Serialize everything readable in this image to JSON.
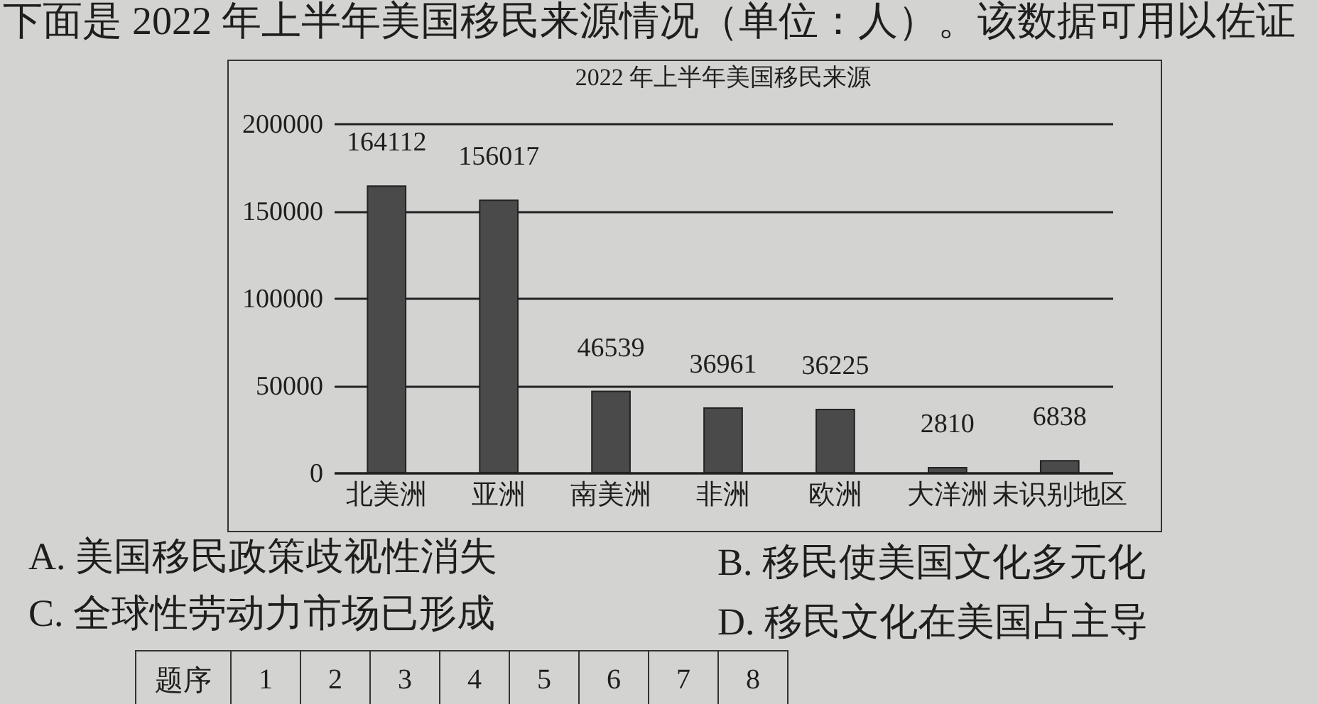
{
  "chart_data": {
    "type": "bar",
    "title": "2022 年上半年美国移民来源",
    "categories": [
      "北美洲",
      "亚洲",
      "南美洲",
      "非洲",
      "欧洲",
      "大洋洲",
      "未识别地区"
    ],
    "values": [
      164112,
      156017,
      46539,
      36961,
      36225,
      2810,
      6838
    ],
    "color": "#4a4a4a",
    "ylim": [
      0,
      200000
    ],
    "yticks": [
      0,
      50000,
      100000,
      150000,
      200000
    ],
    "grid": "y",
    "data_labels": true,
    "annotations": [
      "下面是 2022 年上半年美国移民来源情况（单位：人）。该数据可用以佐证",
      "A. 美国移民政策歧视性消失",
      "B. 移民使美国文化多元化",
      "C. 全球性劳动力市场已形成",
      "D. 移民文化在美国占主导",
      "题序 1 2 3 4 5 6 7 8"
    ]
  }
}
